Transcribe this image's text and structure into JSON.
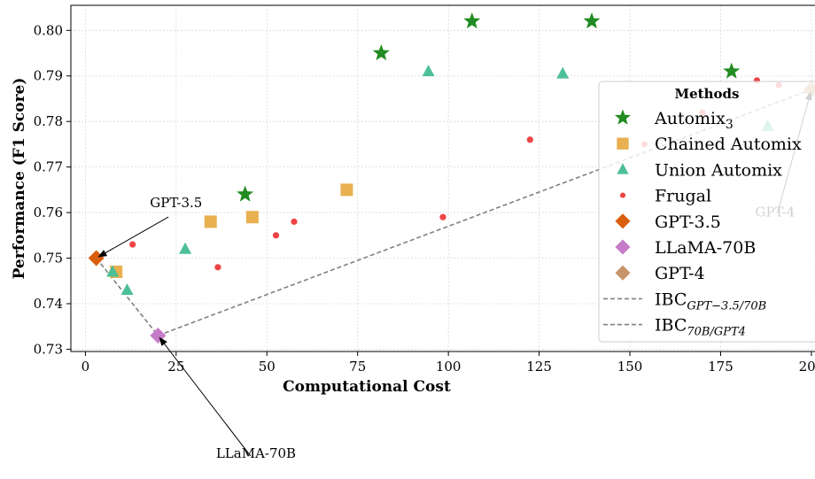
{
  "chart_data": {
    "type": "scatter",
    "xlabel": "Computational Cost",
    "ylabel": "Performance (F1 Score)",
    "xlim": [
      -4,
      201
    ],
    "ylim": [
      0.7295,
      0.8055
    ],
    "xticks": [
      0,
      25,
      50,
      75,
      100,
      125,
      150,
      175,
      200
    ],
    "xtick_labels": [
      "0",
      "25",
      "50",
      "75",
      "100",
      "125",
      "150",
      "175",
      "200"
    ],
    "yticks": [
      0.73,
      0.74,
      0.75,
      0.76,
      0.77,
      0.78,
      0.79,
      0.8
    ],
    "ytick_labels": [
      "0.73",
      "0.74",
      "0.75",
      "0.76",
      "0.77",
      "0.78",
      "0.79",
      "0.80"
    ],
    "grid": true,
    "legend": {
      "title": "Methods",
      "placement": "right",
      "entries": [
        {
          "label": "Automix",
          "sub": "3",
          "sup": "",
          "marker": "star",
          "color": "#228b22"
        },
        {
          "label": "Chained Automix",
          "sub": "",
          "marker": "square",
          "color": "#e8b04f"
        },
        {
          "label": "Union Automix",
          "sub": "",
          "marker": "triangle",
          "color": "#4dbf96"
        },
        {
          "label": "Frugal",
          "sub": "",
          "marker": "dot",
          "color": "#ef4444"
        },
        {
          "label": "GPT-3.5",
          "sub": "",
          "marker": "diamond",
          "color": "#d95f0e"
        },
        {
          "label": "LLaMA-70B",
          "sub": "",
          "marker": "diamond",
          "color": "#c77cc7"
        },
        {
          "label": "GPT-4",
          "sub": "",
          "marker": "diamond",
          "color": "#c8956a"
        },
        {
          "label": "IBC",
          "sub": "GPT−3.5/70B",
          "marker": "dashed",
          "color": "#808080"
        },
        {
          "label": "IBC",
          "sub": "70B/GPT4",
          "marker": "dashed",
          "color": "#808080"
        }
      ]
    },
    "series": [
      {
        "name": "Automix3",
        "marker": "star",
        "color": "#228b22",
        "x": [
          44,
          81.5,
          106.5,
          139.5,
          178
        ],
        "y": [
          0.764,
          0.795,
          0.802,
          0.802,
          0.791
        ]
      },
      {
        "name": "Chained Automix",
        "marker": "square",
        "color": "#e8b04f",
        "x": [
          8.5,
          34.5,
          46,
          72
        ],
        "y": [
          0.747,
          0.758,
          0.759,
          0.765
        ]
      },
      {
        "name": "Union Automix",
        "marker": "triangle",
        "color": "#4dbf96",
        "x": [
          7.5,
          11.5,
          27.5,
          94.5,
          131.5,
          188
        ],
        "y": [
          0.747,
          0.743,
          0.752,
          0.791,
          0.7905,
          0.779
        ]
      },
      {
        "name": "Frugal",
        "marker": "dot",
        "color": "#ef4444",
        "x": [
          13,
          36.5,
          52.5,
          57.5,
          98.5,
          122.5,
          154,
          170,
          185,
          191
        ],
        "y": [
          0.753,
          0.748,
          0.755,
          0.758,
          0.759,
          0.776,
          0.775,
          0.782,
          0.789,
          0.788
        ]
      },
      {
        "name": "GPT-3.5",
        "marker": "diamond",
        "color": "#d95f0e",
        "x": [
          3
        ],
        "y": [
          0.75
        ]
      },
      {
        "name": "LLaMA-70B",
        "marker": "diamond",
        "color": "#c77cc7",
        "x": [
          20
        ],
        "y": [
          0.733
        ]
      },
      {
        "name": "GPT-4",
        "marker": "diamond",
        "color": "#c8956a",
        "x": [
          200
        ],
        "y": [
          0.787
        ]
      }
    ],
    "lines": [
      {
        "name": "IBC GPT-3.5/70B",
        "style": "dashed",
        "color": "#808080",
        "x": [
          3,
          20
        ],
        "y": [
          0.75,
          0.733
        ]
      },
      {
        "name": "IBC 70B/GPT4",
        "style": "dashed",
        "color": "#808080",
        "x": [
          20,
          200
        ],
        "y": [
          0.733,
          0.787
        ]
      }
    ],
    "annotations": [
      {
        "text": "GPT-3.5",
        "point": [
          3,
          0.75
        ],
        "text_pos": [
          25,
          0.76
        ]
      },
      {
        "text": "LLaMA-70B",
        "point": [
          20,
          0.733
        ],
        "text_pos": [
          47,
          0.705
        ]
      },
      {
        "text": "GPT-4",
        "point": [
          200,
          0.787
        ],
        "text_pos": [
          190,
          0.758
        ]
      }
    ]
  }
}
